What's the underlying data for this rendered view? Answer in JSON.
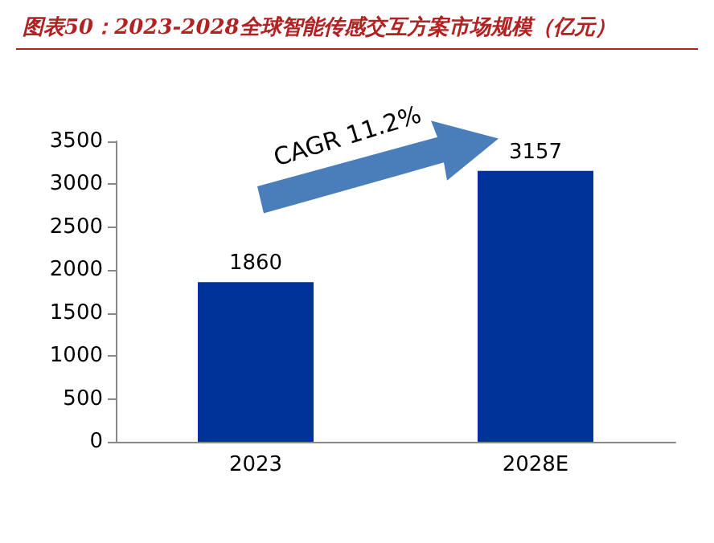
{
  "chart_data": {
    "type": "bar",
    "title": "图表50：2023-2028全球智能传感交互方案市场规模（亿元）",
    "categories": [
      "2023",
      "2028E"
    ],
    "values": [
      1860,
      3157
    ],
    "color": "#003399",
    "ylim": [
      0,
      3500
    ],
    "yticks": [
      0,
      500,
      1000,
      1500,
      2000,
      2500,
      3000,
      3500
    ],
    "grid": false,
    "data_labels": true,
    "annotations": [
      "CAGR 11.2%"
    ]
  }
}
